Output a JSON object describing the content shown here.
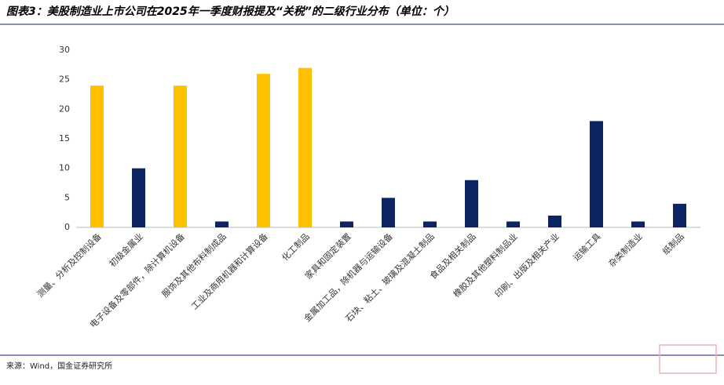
{
  "chart_data": {
    "type": "bar",
    "title": "图表3：美股制造业上市公司在2025年一季度财报提及“关税”的二级行业分布（单位：个）",
    "source": "来源：Wind，国金证券研究所",
    "categories": [
      "测量、分析及控制设备",
      "初级金属业",
      "电子设备及零部件，除计算机设备",
      "服饰及其他布料制成品",
      "工业及商用机器和计算设备",
      "化工制品",
      "家具和固定装置",
      "金属加工品，除机器与运输设备",
      "石块、粘土、玻璃及混凝土制品",
      "食品及相关制品",
      "橡胶及其他塑料制品业",
      "印刷、出版及相关产业",
      "运输工具",
      "杂类制造业",
      "纸制品"
    ],
    "values": [
      24,
      10,
      24,
      1,
      26,
      27,
      1,
      5,
      1,
      8,
      1,
      2,
      18,
      1,
      4
    ],
    "colors": [
      "#ffc000",
      "#0c2461",
      "#ffc000",
      "#0c2461",
      "#ffc000",
      "#ffc000",
      "#0c2461",
      "#0c2461",
      "#0c2461",
      "#0c2461",
      "#0c2461",
      "#0c2461",
      "#0c2461",
      "#0c2461",
      "#0c2461"
    ],
    "ylim": [
      0,
      30
    ],
    "yticks": [
      0,
      5,
      10,
      15,
      20,
      25,
      30
    ],
    "grid": false
  }
}
